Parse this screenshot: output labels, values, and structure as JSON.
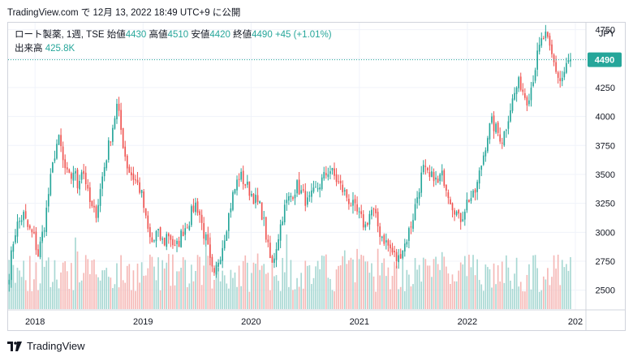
{
  "header": {
    "text": "TradingView.com で 12月 13, 2022 18:49 UTC+9 に公開"
  },
  "legend": {
    "symbol": "ロート製薬, 1週, TSE",
    "open_label": "始値",
    "open_value": "4430",
    "high_label": "高値",
    "high_value": "4510",
    "low_label": "安値",
    "low_value": "4420",
    "close_label": "終値",
    "close_value": "4490",
    "change": "+45 (+1.01%)",
    "volume_label": "出来高",
    "volume_value": "425.8K"
  },
  "footer": {
    "brand": "TradingView",
    "logo_icon": "tradingview-logo-icon"
  },
  "colors": {
    "up": "#26a69a",
    "down": "#ef5350",
    "up_volume": "#a8d8d3",
    "down_volume": "#f5b8b6",
    "grid": "#f0f3fa",
    "price_label_bg": "#26a69a"
  },
  "chart_data": {
    "type": "candlestick",
    "currency": "JPY",
    "y_ticks": [
      2500,
      2750,
      3000,
      3250,
      3500,
      3750,
      4000,
      4250,
      4500,
      4750
    ],
    "ylim": [
      2330,
      4810
    ],
    "x_ticks": [
      {
        "date": "2018-01-01",
        "label": "2018"
      },
      {
        "date": "2019-01-01",
        "label": "2019"
      },
      {
        "date": "2020-01-01",
        "label": "2020"
      },
      {
        "date": "2021-01-01",
        "label": "2021"
      },
      {
        "date": "2022-01-01",
        "label": "2022"
      },
      {
        "date": "2023-01-01",
        "label": "202"
      }
    ],
    "last_price": 4490,
    "date_range": [
      "2017-10-02",
      "2022-12-12"
    ],
    "series": [
      {
        "values": [
          2650,
          2900,
          3050,
          3100,
          3150,
          3050,
          3000,
          2950,
          2800,
          2950
        ]
      },
      {
        "values": [
          3100,
          3350,
          3550,
          3750,
          3800,
          3600,
          3500,
          3450,
          3550,
          3400,
          3550,
          3500,
          3300,
          3200,
          3150
        ]
      },
      {
        "values": [
          3300,
          3500,
          3650,
          3800,
          3950,
          4100,
          3900,
          3700,
          3550,
          3500,
          3450,
          3400,
          3300,
          3100
        ]
      },
      {
        "values": [
          2950,
          2900,
          3000,
          2950,
          2900,
          3000,
          2950,
          2850,
          2900,
          3000,
          3050,
          3100,
          3200,
          3250,
          3150,
          3000,
          2900
        ]
      },
      {
        "values": [
          2700,
          2600,
          2750,
          2850,
          3000,
          3150,
          3300,
          3400,
          3500,
          3450,
          3400,
          3350,
          3300,
          3250
        ]
      },
      {
        "values": [
          3200,
          3050,
          2850,
          2700,
          2850,
          3000,
          3150,
          3250,
          3300,
          3350,
          3400,
          3350,
          3300,
          3250
        ]
      },
      {
        "values": [
          3300,
          3350,
          3400,
          3450,
          3500,
          3550,
          3500,
          3450,
          3400,
          3350,
          3300,
          3250
        ]
      },
      {
        "values": [
          3200,
          3150,
          3100,
          3050,
          3150,
          3200,
          3100,
          3000,
          2950,
          2900,
          2850,
          2800,
          2750,
          2850
        ]
      },
      {
        "values": [
          2900,
          3000,
          3100,
          3250,
          3400,
          3550,
          3500,
          3450,
          3500,
          3400,
          3500,
          3450,
          3350,
          3250,
          3200,
          3100,
          3150,
          3250,
          3300
        ]
      },
      {
        "values": [
          3300,
          3400,
          3550,
          3700,
          3850,
          3950,
          3900,
          3850,
          3800,
          3900,
          4050,
          4150,
          4250,
          4300,
          4200,
          4150
        ]
      },
      {
        "values": [
          4250,
          4400,
          4550,
          4650,
          4700,
          4600,
          4500,
          4400,
          4300,
          4350,
          4450,
          4490
        ]
      }
    ]
  }
}
